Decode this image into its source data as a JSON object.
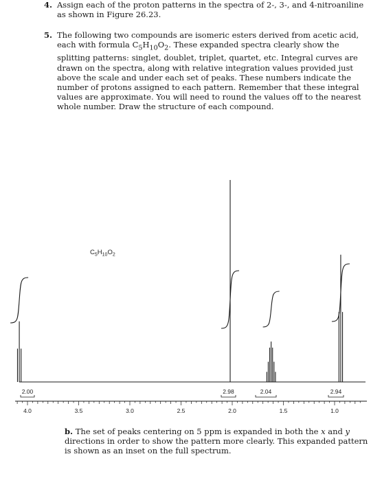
{
  "questions": [
    {
      "number": "4.",
      "text": "Assign each of the proton patterns in the spectra of 2-, 3-, and 4-nitroaniline as shown in Figure 26.23."
    },
    {
      "number": "5.",
      "text_before_formula": "The following two compounds are isomeric esters derived from acetic acid, each with formula ",
      "formula": {
        "C": "C",
        "C_sub": "5",
        "H": "H",
        "H_sub": "10",
        "O": "O",
        "O_sub": "2"
      },
      "text_after_formula": ". These expanded spectra clearly show the splitting patterns: singlet, doublet, triplet, quartet, etc. Integral curves are drawn on the spectra, along with relative integration values provided just above the scale and under each set of peaks. These numbers indicate the number of protons assigned to each pattern. Remember that these integral values are approximate. You will need to round the values off to the nearest whole number. Draw the structure of each compound."
    }
  ],
  "part_b": {
    "label": "b.",
    "text_before_x": "The set of peaks centering on 5 ppm is expanded in both the ",
    "x_var": "x",
    "text_between": " and ",
    "y_var": "y",
    "text_after_y": " directions in order to show the pattern more clearly. This expanded pattern is shown as an inset on the full spectrum."
  },
  "chart_data": {
    "type": "line",
    "title": "",
    "formula_label": {
      "C": "C",
      "C_sub": "5",
      "H": "H",
      "H_sub": "10",
      "O": "O",
      "O_sub": "2"
    },
    "x_axis": {
      "label": "",
      "direction": "decreasing",
      "range": [
        4.3,
        0.7
      ],
      "ticks": [
        "4.0",
        "3.5",
        "3.0",
        "2.5",
        "2.0",
        "1.5",
        "1.0"
      ],
      "tick_values": [
        4.0,
        3.5,
        3.0,
        2.5,
        2.0,
        1.5,
        1.0
      ]
    },
    "peaks": [
      {
        "center_ppm": 4.08,
        "pattern": "triplet",
        "relative_height": 0.3,
        "integral": "2.00"
      },
      {
        "center_ppm": 2.02,
        "pattern": "singlet",
        "relative_height": 1.0,
        "integral": "2.98"
      },
      {
        "center_ppm": 1.62,
        "pattern": "multiplet",
        "relative_height": 0.2,
        "integral": "2.04"
      },
      {
        "center_ppm": 0.94,
        "pattern": "triplet",
        "relative_height": 0.63,
        "integral": "2.94"
      }
    ]
  }
}
